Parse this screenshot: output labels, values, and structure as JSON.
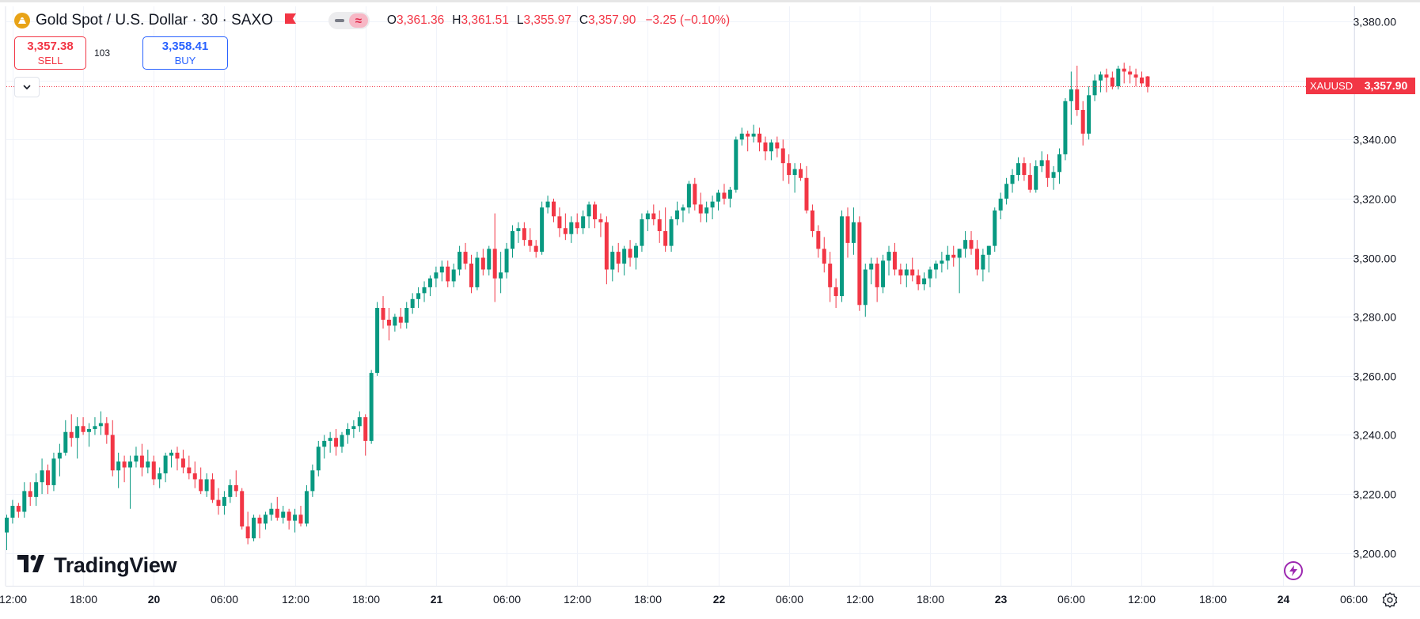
{
  "header": {
    "title": "Gold Spot / U.S. Dollar · 30 · SAXO",
    "ohlc": [
      {
        "key": "O",
        "value": "3,361.36"
      },
      {
        "key": "H",
        "value": "3,361.51"
      },
      {
        "key": "L",
        "value": "3,355.97"
      },
      {
        "key": "C",
        "value": "3,357.90"
      }
    ],
    "change": "−3.25 (−0.10%)"
  },
  "trade": {
    "sell_price": "3,357.38",
    "sell_label": "SELL",
    "buy_price": "3,358.41",
    "buy_label": "BUY",
    "spread": "103"
  },
  "branding": {
    "logo_text": "TradingView"
  },
  "icons": [
    "gold-symbol-icon",
    "flag-icon",
    "chevron-down-icon",
    "lightning-icon",
    "gear-icon"
  ],
  "colors": {
    "up": "#089981",
    "down": "#f23645",
    "grid": "#f0f3fa",
    "text": "#131722",
    "accent": "#2962ff"
  },
  "chart_data": {
    "type": "candlestick",
    "symbol": "XAUUSD",
    "timeframe": "30",
    "last_price": 3357.9,
    "last_price_label": "3,357.90",
    "ylim": [
      3190,
      3383
    ],
    "y_ticks": [
      {
        "v": 3200,
        "label": "3,200.00"
      },
      {
        "v": 3220,
        "label": "3,220.00"
      },
      {
        "v": 3240,
        "label": "3,240.00"
      },
      {
        "v": 3260,
        "label": "3,260.00"
      },
      {
        "v": 3280,
        "label": "3,280.00"
      },
      {
        "v": 3300,
        "label": "3,300.00"
      },
      {
        "v": 3320,
        "label": "3,320.00"
      },
      {
        "v": 3340,
        "label": "3,340.00"
      },
      {
        "v": 3360,
        "label": "3,360.00"
      },
      {
        "v": 3380,
        "label": "3,380.00"
      }
    ],
    "x_ticks": [
      {
        "i": 1,
        "label": "12:00",
        "bold": false
      },
      {
        "i": 13,
        "label": "18:00",
        "bold": false
      },
      {
        "i": 25,
        "label": "20",
        "bold": true
      },
      {
        "i": 37,
        "label": "06:00",
        "bold": false
      },
      {
        "i": 49,
        "label": "12:00",
        "bold": false
      },
      {
        "i": 61,
        "label": "18:00",
        "bold": false
      },
      {
        "i": 73,
        "label": "21",
        "bold": true
      },
      {
        "i": 85,
        "label": "06:00",
        "bold": false
      },
      {
        "i": 97,
        "label": "12:00",
        "bold": false
      },
      {
        "i": 109,
        "label": "18:00",
        "bold": false
      },
      {
        "i": 121,
        "label": "22",
        "bold": true
      },
      {
        "i": 133,
        "label": "06:00",
        "bold": false
      },
      {
        "i": 145,
        "label": "12:00",
        "bold": false
      },
      {
        "i": 157,
        "label": "18:00",
        "bold": false
      },
      {
        "i": 169,
        "label": "23",
        "bold": true
      },
      {
        "i": 181,
        "label": "06:00",
        "bold": false
      },
      {
        "i": 193,
        "label": "12:00",
        "bold": false
      },
      {
        "i": 205,
        "label": "18:00",
        "bold": false
      },
      {
        "i": 217,
        "label": "24",
        "bold": true
      },
      {
        "i": 229,
        "label": "06:00",
        "bold": false
      }
    ],
    "candles": [
      [
        3207,
        3213,
        3201,
        3212
      ],
      [
        3212,
        3218,
        3210,
        3216
      ],
      [
        3216,
        3217,
        3212,
        3214
      ],
      [
        3214,
        3224,
        3212,
        3221
      ],
      [
        3221,
        3224,
        3216,
        3219
      ],
      [
        3219,
        3227,
        3216,
        3224
      ],
      [
        3224,
        3232,
        3220,
        3228
      ],
      [
        3228,
        3230,
        3220,
        3223
      ],
      [
        3223,
        3234,
        3221,
        3232
      ],
      [
        3232,
        3237,
        3226,
        3234
      ],
      [
        3234,
        3245,
        3233,
        3241
      ],
      [
        3241,
        3247,
        3236,
        3239
      ],
      [
        3239,
        3246,
        3232,
        3243
      ],
      [
        3243,
        3246,
        3240,
        3241
      ],
      [
        3241,
        3244,
        3236,
        3242
      ],
      [
        3242,
        3246,
        3240,
        3243
      ],
      [
        3243,
        3248,
        3240,
        3244
      ],
      [
        3244,
        3246,
        3237,
        3240
      ],
      [
        3240,
        3245,
        3226,
        3228
      ],
      [
        3228,
        3234,
        3222,
        3231
      ],
      [
        3231,
        3233,
        3224,
        3229
      ],
      [
        3229,
        3233,
        3215,
        3231
      ],
      [
        3231,
        3236,
        3229,
        3233
      ],
      [
        3233,
        3237,
        3226,
        3229
      ],
      [
        3229,
        3235,
        3227,
        3231
      ],
      [
        3231,
        3233,
        3223,
        3225
      ],
      [
        3225,
        3229,
        3222,
        3227
      ],
      [
        3227,
        3234,
        3224,
        3233
      ],
      [
        3233,
        3235,
        3229,
        3234
      ],
      [
        3234,
        3236,
        3228,
        3232
      ],
      [
        3232,
        3235,
        3227,
        3229
      ],
      [
        3229,
        3233,
        3225,
        3227
      ],
      [
        3227,
        3231,
        3222,
        3225
      ],
      [
        3225,
        3229,
        3220,
        3221
      ],
      [
        3221,
        3227,
        3219,
        3225
      ],
      [
        3225,
        3227,
        3217,
        3218
      ],
      [
        3218,
        3222,
        3213,
        3216
      ],
      [
        3216,
        3221,
        3213,
        3219
      ],
      [
        3219,
        3225,
        3217,
        3223
      ],
      [
        3223,
        3228,
        3219,
        3221
      ],
      [
        3221,
        3222,
        3208,
        3209
      ],
      [
        3209,
        3214,
        3203,
        3205
      ],
      [
        3205,
        3213,
        3204,
        3212
      ],
      [
        3212,
        3213,
        3205,
        3210
      ],
      [
        3210,
        3214,
        3208,
        3213
      ],
      [
        3213,
        3217,
        3211,
        3215
      ],
      [
        3215,
        3219,
        3211,
        3212
      ],
      [
        3212,
        3216,
        3210,
        3214
      ],
      [
        3214,
        3215,
        3208,
        3211
      ],
      [
        3211,
        3215,
        3207,
        3213
      ],
      [
        3213,
        3216,
        3209,
        3210
      ],
      [
        3210,
        3223,
        3209,
        3221
      ],
      [
        3221,
        3230,
        3219,
        3228
      ],
      [
        3228,
        3238,
        3226,
        3236
      ],
      [
        3236,
        3240,
        3232,
        3238
      ],
      [
        3238,
        3241,
        3234,
        3239
      ],
      [
        3239,
        3242,
        3233,
        3236
      ],
      [
        3236,
        3241,
        3234,
        3240
      ],
      [
        3240,
        3244,
        3237,
        3242
      ],
      [
        3242,
        3245,
        3239,
        3243
      ],
      [
        3243,
        3248,
        3241,
        3246
      ],
      [
        3246,
        3247,
        3233,
        3238
      ],
      [
        3238,
        3262,
        3237,
        3261
      ],
      [
        3261,
        3285,
        3260,
        3283
      ],
      [
        3283,
        3287,
        3276,
        3279
      ],
      [
        3279,
        3283,
        3272,
        3277
      ],
      [
        3277,
        3281,
        3275,
        3280
      ],
      [
        3280,
        3283,
        3276,
        3278
      ],
      [
        3278,
        3285,
        3276,
        3283
      ],
      [
        3283,
        3288,
        3281,
        3286
      ],
      [
        3286,
        3290,
        3283,
        3288
      ],
      [
        3288,
        3292,
        3285,
        3290
      ],
      [
        3290,
        3294,
        3287,
        3293
      ],
      [
        3293,
        3297,
        3290,
        3295
      ],
      [
        3295,
        3299,
        3292,
        3297
      ],
      [
        3297,
        3299,
        3290,
        3292
      ],
      [
        3292,
        3298,
        3290,
        3296
      ],
      [
        3296,
        3304,
        3294,
        3302
      ],
      [
        3302,
        3305,
        3296,
        3298
      ],
      [
        3298,
        3301,
        3288,
        3290
      ],
      [
        3290,
        3302,
        3289,
        3300
      ],
      [
        3300,
        3303,
        3294,
        3296
      ],
      [
        3296,
        3304,
        3294,
        3303
      ],
      [
        3303,
        3315,
        3285,
        3293
      ],
      [
        3293,
        3302,
        3288,
        3295
      ],
      [
        3295,
        3305,
        3293,
        3303
      ],
      [
        3303,
        3311,
        3300,
        3309
      ],
      [
        3309,
        3312,
        3305,
        3310
      ],
      [
        3310,
        3312,
        3304,
        3306
      ],
      [
        3306,
        3310,
        3302,
        3304
      ],
      [
        3304,
        3306,
        3300,
        3302
      ],
      [
        3302,
        3319,
        3301,
        3317
      ],
      [
        3317,
        3321,
        3315,
        3319
      ],
      [
        3319,
        3320,
        3312,
        3314
      ],
      [
        3314,
        3317,
        3307,
        3310
      ],
      [
        3310,
        3315,
        3306,
        3308
      ],
      [
        3308,
        3314,
        3305,
        3312
      ],
      [
        3312,
        3315,
        3308,
        3310
      ],
      [
        3310,
        3316,
        3308,
        3314
      ],
      [
        3314,
        3319,
        3310,
        3318
      ],
      [
        3318,
        3319,
        3310,
        3313
      ],
      [
        3313,
        3315,
        3307,
        3312
      ],
      [
        3312,
        3314,
        3291,
        3296
      ],
      [
        3296,
        3304,
        3292,
        3302
      ],
      [
        3302,
        3305,
        3295,
        3298
      ],
      [
        3298,
        3304,
        3294,
        3303
      ],
      [
        3303,
        3306,
        3297,
        3300
      ],
      [
        3300,
        3305,
        3296,
        3304
      ],
      [
        3304,
        3315,
        3302,
        3313
      ],
      [
        3313,
        3316,
        3309,
        3315
      ],
      [
        3315,
        3318,
        3311,
        3313
      ],
      [
        3313,
        3316,
        3305,
        3309
      ],
      [
        3309,
        3317,
        3302,
        3304
      ],
      [
        3304,
        3314,
        3302,
        3313
      ],
      [
        3313,
        3319,
        3311,
        3316
      ],
      [
        3316,
        3318,
        3312,
        3317
      ],
      [
        3317,
        3326,
        3315,
        3325
      ],
      [
        3325,
        3327,
        3316,
        3318
      ],
      [
        3318,
        3322,
        3312,
        3315
      ],
      [
        3315,
        3319,
        3312,
        3317
      ],
      [
        3317,
        3321,
        3313,
        3319
      ],
      [
        3319,
        3323,
        3316,
        3322
      ],
      [
        3322,
        3325,
        3318,
        3320
      ],
      [
        3320,
        3324,
        3317,
        3323
      ],
      [
        3323,
        3341,
        3322,
        3340
      ],
      [
        3340,
        3344,
        3338,
        3342
      ],
      [
        3342,
        3343,
        3336,
        3341
      ],
      [
        3341,
        3345,
        3339,
        3342
      ],
      [
        3342,
        3344,
        3336,
        3339
      ],
      [
        3339,
        3341,
        3333,
        3336
      ],
      [
        3336,
        3340,
        3333,
        3339
      ],
      [
        3339,
        3341,
        3334,
        3337
      ],
      [
        3337,
        3340,
        3326,
        3332
      ],
      [
        3332,
        3335,
        3325,
        3328
      ],
      [
        3328,
        3332,
        3322,
        3330
      ],
      [
        3330,
        3332,
        3326,
        3327
      ],
      [
        3327,
        3331,
        3315,
        3316
      ],
      [
        3316,
        3318,
        3307,
        3309
      ],
      [
        3309,
        3311,
        3300,
        3303
      ],
      [
        3303,
        3307,
        3295,
        3298
      ],
      [
        3298,
        3302,
        3285,
        3290
      ],
      [
        3290,
        3293,
        3283,
        3287
      ],
      [
        3287,
        3316,
        3285,
        3314
      ],
      [
        3314,
        3317,
        3300,
        3305
      ],
      [
        3305,
        3317,
        3301,
        3312
      ],
      [
        3312,
        3314,
        3282,
        3284
      ],
      [
        3284,
        3298,
        3280,
        3296
      ],
      [
        3296,
        3300,
        3291,
        3298
      ],
      [
        3298,
        3300,
        3285,
        3290
      ],
      [
        3290,
        3301,
        3288,
        3299
      ],
      [
        3299,
        3304,
        3294,
        3302
      ],
      [
        3302,
        3305,
        3294,
        3296
      ],
      [
        3296,
        3298,
        3291,
        3294
      ],
      [
        3294,
        3298,
        3290,
        3296
      ],
      [
        3296,
        3300,
        3292,
        3294
      ],
      [
        3294,
        3296,
        3289,
        3291
      ],
      [
        3291,
        3295,
        3289,
        3293
      ],
      [
        3293,
        3297,
        3290,
        3296
      ],
      [
        3296,
        3299,
        3293,
        3298
      ],
      [
        3298,
        3302,
        3295,
        3299
      ],
      [
        3299,
        3304,
        3296,
        3301
      ],
      [
        3301,
        3304,
        3297,
        3300
      ],
      [
        3300,
        3303,
        3288,
        3303
      ],
      [
        3303,
        3309,
        3300,
        3306
      ],
      [
        3306,
        3309,
        3301,
        3303
      ],
      [
        3303,
        3306,
        3294,
        3296
      ],
      [
        3296,
        3303,
        3292,
        3301
      ],
      [
        3301,
        3304,
        3295,
        3304
      ],
      [
        3304,
        3317,
        3302,
        3316
      ],
      [
        3316,
        3322,
        3313,
        3320
      ],
      [
        3320,
        3327,
        3318,
        3325
      ],
      [
        3325,
        3330,
        3322,
        3328
      ],
      [
        3328,
        3334,
        3326,
        3332
      ],
      [
        3332,
        3334,
        3326,
        3328
      ],
      [
        3328,
        3332,
        3322,
        3323
      ],
      [
        3323,
        3333,
        3322,
        3331
      ],
      [
        3331,
        3336,
        3329,
        3333
      ],
      [
        3333,
        3335,
        3324,
        3327
      ],
      [
        3327,
        3331,
        3323,
        3329
      ],
      [
        3329,
        3337,
        3325,
        3335
      ],
      [
        3335,
        3354,
        3333,
        3353
      ],
      [
        3353,
        3363,
        3345,
        3357
      ],
      [
        3357,
        3365,
        3348,
        3350
      ],
      [
        3350,
        3353,
        3338,
        3342
      ],
      [
        3342,
        3358,
        3340,
        3355
      ],
      [
        3355,
        3362,
        3353,
        3360
      ],
      [
        3360,
        3363,
        3356,
        3362
      ],
      [
        3362,
        3364,
        3356,
        3361
      ],
      [
        3361,
        3363,
        3357,
        3358
      ],
      [
        3358,
        3365,
        3357,
        3364
      ],
      [
        3364,
        3366,
        3359,
        3363
      ],
      [
        3363,
        3365,
        3359,
        3362
      ],
      [
        3362,
        3364,
        3358,
        3361
      ],
      [
        3361,
        3363,
        3358,
        3359
      ],
      [
        3361.36,
        3361.51,
        3355.97,
        3357.9
      ]
    ]
  }
}
